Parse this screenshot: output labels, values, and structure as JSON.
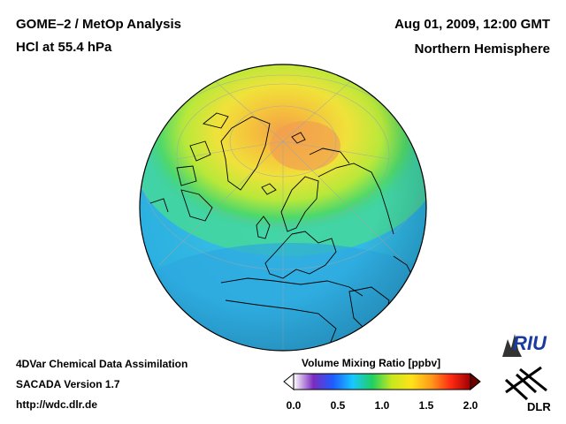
{
  "header": {
    "title_line1": "GOME–2 / MetOp Analysis",
    "title_line2": "HCl at 55.4 hPa",
    "datetime": "Aug 01, 2009, 12:00 GMT",
    "hemisphere": "Northern Hemisphere"
  },
  "footer": {
    "line1": "4DVar Chemical Data Assimilation",
    "line2": "SACADA Version 1.7",
    "line3": "http://wdc.dlr.de"
  },
  "colorbar": {
    "title": "Volume Mixing Ratio [ppbv]",
    "ticks": [
      "0.0",
      "0.5",
      "1.0",
      "1.5",
      "2.0"
    ],
    "colors": [
      "#ffffff",
      "#7b2cbf",
      "#1e5cff",
      "#19c7ff",
      "#20d060",
      "#c8e81e",
      "#ffe21a",
      "#ff9a1a",
      "#ff2a12",
      "#9e0000"
    ]
  },
  "logos": {
    "riu": "RIU",
    "dlr": "DLR"
  }
}
